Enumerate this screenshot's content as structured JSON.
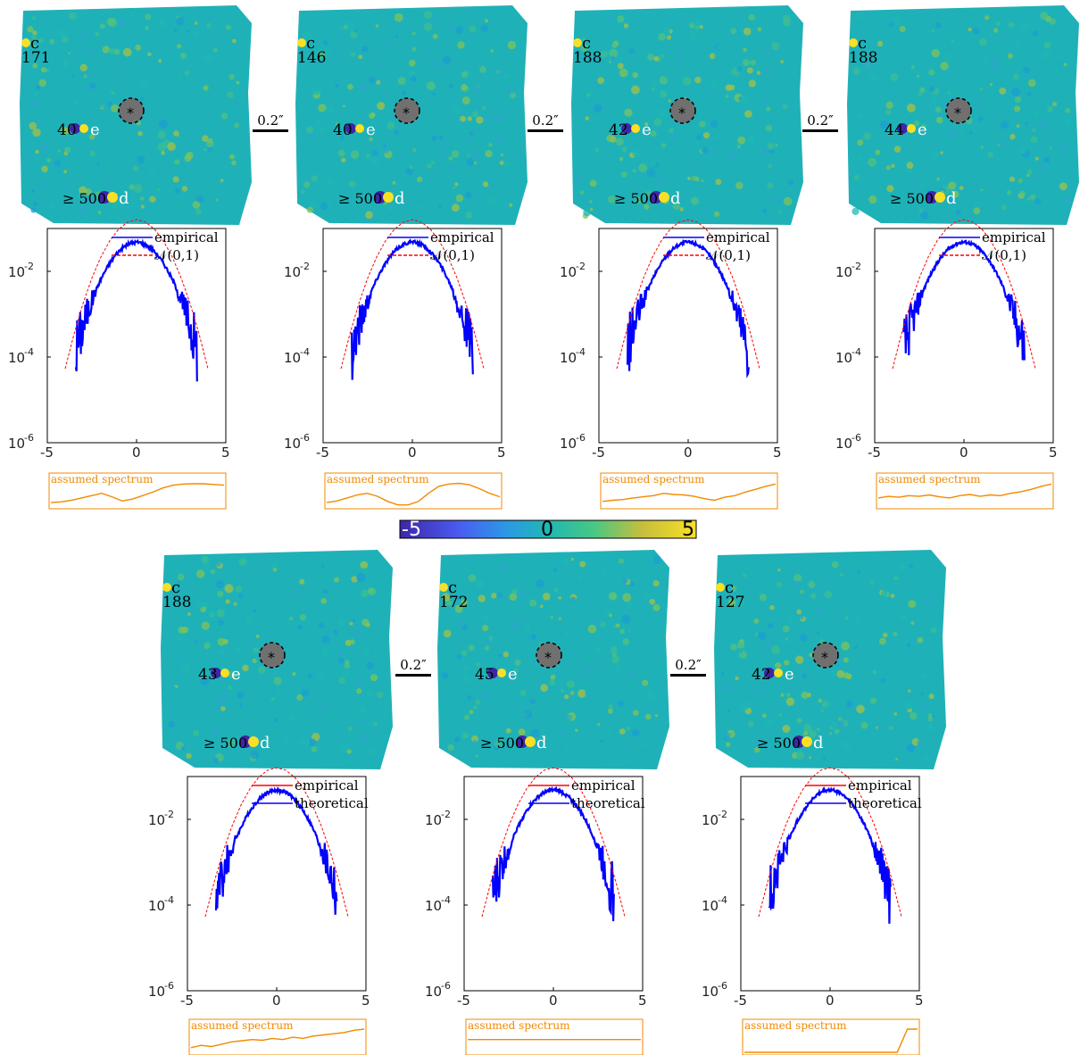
{
  "panels": [
    {
      "c_value": "171",
      "e_value": "40",
      "d_value": "≥ 500",
      "legend_1": "empirical",
      "legend_2": "𝒩(0,1)",
      "legend_1_color": "#0000ff",
      "legend_2_color": "#ff0000",
      "legend_2_dashed": true,
      "spectrum": [
        0.15,
        0.18,
        0.25,
        0.35,
        0.45,
        0.55,
        0.4,
        0.22,
        0.3,
        0.45,
        0.6,
        0.78,
        0.9,
        0.95,
        0.96,
        0.96,
        0.93,
        0.9
      ]
    },
    {
      "c_value": "146",
      "e_value": "40",
      "d_value": "≥ 500",
      "legend_1": "empirical",
      "legend_2": "𝒩(0,1)",
      "legend_1_color": "#0000ff",
      "legend_2_color": "#ff0000",
      "legend_2_dashed": true,
      "spectrum": [
        0.15,
        0.22,
        0.35,
        0.48,
        0.55,
        0.42,
        0.2,
        0.05,
        0.05,
        0.2,
        0.55,
        0.85,
        0.95,
        0.98,
        0.92,
        0.75,
        0.55,
        0.4
      ]
    },
    {
      "c_value": "188",
      "e_value": "42",
      "d_value": "≥ 500",
      "legend_1": "empirical",
      "legend_2": "𝒩(0,1)",
      "legend_1_color": "#0000ff",
      "legend_2_color": "#ff0000",
      "legend_2_dashed": true,
      "spectrum": [
        0.2,
        0.25,
        0.28,
        0.35,
        0.4,
        0.45,
        0.55,
        0.5,
        0.48,
        0.42,
        0.32,
        0.25,
        0.38,
        0.45,
        0.6,
        0.72,
        0.85,
        0.95
      ]
    },
    {
      "c_value": "188",
      "e_value": "44",
      "d_value": "≥ 500",
      "legend_1": "empirical",
      "legend_2": "𝒩(0,1)",
      "legend_1_color": "#0000ff",
      "legend_2_color": "#ff0000",
      "legend_2_dashed": true,
      "spectrum": [
        0.35,
        0.42,
        0.38,
        0.45,
        0.42,
        0.48,
        0.4,
        0.35,
        0.45,
        0.5,
        0.42,
        0.48,
        0.45,
        0.55,
        0.62,
        0.72,
        0.85,
        0.95
      ]
    },
    {
      "c_value": "188",
      "e_value": "43",
      "d_value": "≥ 500",
      "legend_1": "empirical",
      "legend_2": "theoretical",
      "legend_1_color": "#ff0000",
      "legend_2_color": "#0000ff",
      "legend_2_dashed": false,
      "spectrum": [
        0.2,
        0.3,
        0.25,
        0.35,
        0.45,
        0.5,
        0.55,
        0.52,
        0.6,
        0.55,
        0.65,
        0.6,
        0.7,
        0.75,
        0.8,
        0.85,
        0.95,
        1.0
      ]
    },
    {
      "c_value": "172",
      "e_value": "45",
      "d_value": "≥ 500",
      "legend_1": "empirical",
      "legend_2": "theoretical",
      "legend_1_color": "#ff0000",
      "legend_2_color": "#0000ff",
      "legend_2_dashed": false,
      "spectrum": [
        0.55,
        0.55,
        0.55,
        0.55,
        0.55,
        0.55,
        0.55,
        0.55,
        0.55,
        0.55,
        0.55,
        0.55,
        0.55,
        0.55,
        0.55,
        0.55,
        0.55,
        0.55
      ]
    },
    {
      "c_value": "127",
      "e_value": "42",
      "d_value": "≥ 500",
      "legend_1": "empirical",
      "legend_2": "theoretical",
      "legend_1_color": "#ff0000",
      "legend_2_color": "#0000ff",
      "legend_2_dashed": false,
      "spectrum": [
        0.0,
        0.0,
        0.0,
        0.0,
        0.0,
        0.0,
        0.0,
        0.0,
        0.0,
        0.0,
        0.0,
        0.0,
        0.0,
        0.0,
        0.0,
        0.0,
        1.0,
        1.0
      ]
    }
  ],
  "labels": {
    "c": "c",
    "e": "e",
    "d": "d",
    "star": "*",
    "scale": "0.2″",
    "spectrum_title": "assumed spectrum"
  },
  "axes": {
    "xticks": [
      "-5",
      "0",
      "5"
    ],
    "ytick_bases": [
      "10",
      "10",
      "10"
    ],
    "ytick_exps": [
      "-2",
      "-4",
      "-6"
    ],
    "xlim": [
      -5,
      5
    ],
    "ylim_log10": [
      -6,
      -1
    ]
  },
  "colorbar": {
    "min": "-5",
    "mid": "0",
    "max": "5"
  },
  "chart_data": {
    "type": "line",
    "x": [
      -4,
      -3.5,
      -3,
      -2.5,
      -2,
      -1.5,
      -1,
      -0.5,
      0,
      0.5,
      1,
      1.5,
      2,
      2.5,
      3,
      3.5,
      4
    ],
    "series": [
      {
        "name": "𝒩(0,1)",
        "values": [
          5.34e-05,
          0.000347,
          0.00177,
          0.00701,
          0.0216,
          0.0518,
          0.0968,
          0.141,
          0.16,
          0.141,
          0.0968,
          0.0518,
          0.0216,
          0.00701,
          0.00177,
          0.000347,
          5.34e-05
        ]
      }
    ],
    "xlim": [
      -5,
      5
    ],
    "ylim": [
      1e-06,
      0.1
    ],
    "yscale": "log"
  },
  "colors": {
    "orange": "#f28a00",
    "blue": "#0000ff",
    "red": "#ff0000",
    "star": "#707070"
  }
}
